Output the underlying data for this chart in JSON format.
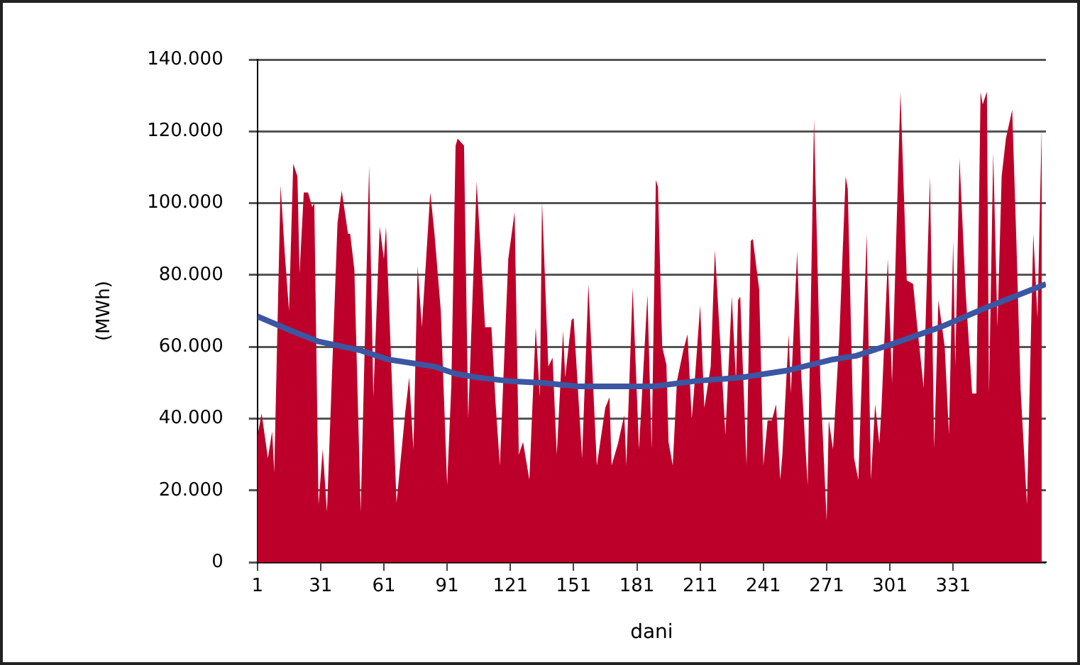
{
  "chart_data": {
    "type": "area",
    "xlabel": "dani",
    "ylabel": "(MWh)",
    "xlim": [
      1,
      375
    ],
    "xticks": [
      1,
      31,
      61,
      91,
      121,
      151,
      181,
      211,
      241,
      271,
      301,
      331
    ],
    "ylim": [
      0,
      140000
    ],
    "yticks": [
      {
        "value": 0,
        "label": "0"
      },
      {
        "value": 20000,
        "label": "20.000"
      },
      {
        "value": 40000,
        "label": "40.000"
      },
      {
        "value": 60000,
        "label": "60.000"
      },
      {
        "value": 80000,
        "label": "80.000"
      },
      {
        "value": 100000,
        "label": "100.000"
      },
      {
        "value": 120000,
        "label": "120.000"
      },
      {
        "value": 140000,
        "label": "140.000"
      }
    ],
    "grid": "y",
    "legend": false,
    "marker": "none",
    "line_style": "solid",
    "series": [
      {
        "type": "area",
        "color": "#bd0029",
        "x": [
          1,
          3,
          6,
          8,
          9,
          12,
          14,
          16,
          18,
          20,
          21,
          23,
          25,
          27,
          28,
          30,
          32,
          34,
          39,
          41,
          44,
          45,
          47,
          50,
          54,
          56,
          59,
          61,
          62,
          67,
          71,
          73,
          75,
          77,
          79,
          83,
          85,
          88,
          91,
          93,
          95,
          96,
          99,
          101,
          105,
          109,
          112,
          114,
          116,
          120,
          123,
          125,
          127,
          130,
          133,
          135,
          136,
          139,
          141,
          143,
          146,
          147,
          150,
          151,
          155,
          158,
          162,
          166,
          168,
          169,
          172,
          175,
          176,
          179,
          182,
          186,
          188,
          190,
          191,
          193,
          195,
          196,
          198,
          200,
          203,
          205,
          207,
          208,
          211,
          213,
          216,
          218,
          220,
          223,
          226,
          228,
          229,
          230,
          233,
          235,
          236,
          239,
          241,
          243,
          245,
          247,
          249,
          250,
          253,
          254,
          257,
          259,
          262,
          265,
          268,
          271,
          272,
          274,
          277,
          280,
          281,
          284,
          286,
          290,
          292,
          294,
          296,
          297,
          300,
          302,
          306,
          309,
          312,
          314,
          317,
          320,
          322,
          324,
          327,
          329,
          331,
          332,
          334,
          337,
          340,
          342,
          344,
          345,
          347,
          348,
          350,
          352,
          354,
          356,
          359,
          361,
          363,
          366,
          369,
          371,
          373
        ],
        "values": [
          35000,
          41500,
          29000,
          36500,
          25000,
          105000,
          86000,
          70000,
          111000,
          107500,
          80500,
          103000,
          103000,
          99000,
          100000,
          16000,
          31500,
          14000,
          94500,
          103500,
          91500,
          91500,
          81500,
          14000,
          110500,
          46000,
          93500,
          84500,
          93500,
          16500,
          41000,
          51500,
          31500,
          82500,
          65500,
          103000,
          91500,
          70000,
          21500,
          49500,
          116000,
          118000,
          116000,
          40000,
          106000,
          65500,
          65500,
          44000,
          27000,
          84500,
          97500,
          30000,
          33500,
          23000,
          65500,
          46000,
          100500,
          54500,
          57000,
          30000,
          64500,
          51500,
          67500,
          68000,
          29000,
          77500,
          27000,
          43000,
          46000,
          27000,
          33000,
          41000,
          27000,
          76500,
          31500,
          74500,
          31500,
          106500,
          104500,
          60000,
          55000,
          33500,
          27000,
          50500,
          59000,
          63500,
          40000,
          47000,
          71500,
          43000,
          54500,
          87000,
          66500,
          35500,
          74000,
          50500,
          73000,
          74000,
          27000,
          89500,
          90000,
          76000,
          27000,
          39500,
          39500,
          44000,
          23000,
          30000,
          63500,
          47000,
          86500,
          51500,
          21500,
          123500,
          50500,
          11500,
          39500,
          31500,
          62500,
          107500,
          104000,
          29000,
          23000,
          91500,
          23000,
          44000,
          33000,
          43000,
          84500,
          50000,
          131000,
          78500,
          77500,
          65500,
          48500,
          107500,
          31500,
          73000,
          60000,
          35500,
          89500,
          54500,
          112500,
          74500,
          47000,
          47000,
          131000,
          127500,
          131000,
          47000,
          114000,
          65500,
          107500,
          118000,
          126000,
          89000,
          48000,
          16000,
          91500,
          68000,
          121500
        ]
      },
      {
        "type": "line",
        "color": "#3b56a2",
        "x": [
          1,
          17,
          30,
          50,
          63,
          85,
          95,
          105,
          120,
          136,
          153,
          189,
          209,
          231,
          253,
          274,
          285,
          303,
          325,
          347,
          375
        ],
        "values": [
          68500,
          64500,
          61500,
          59000,
          56500,
          54500,
          52500,
          51500,
          50500,
          50000,
          49000,
          49000,
          50500,
          51500,
          53500,
          56500,
          57500,
          61000,
          65500,
          71000,
          77500
        ]
      }
    ]
  }
}
